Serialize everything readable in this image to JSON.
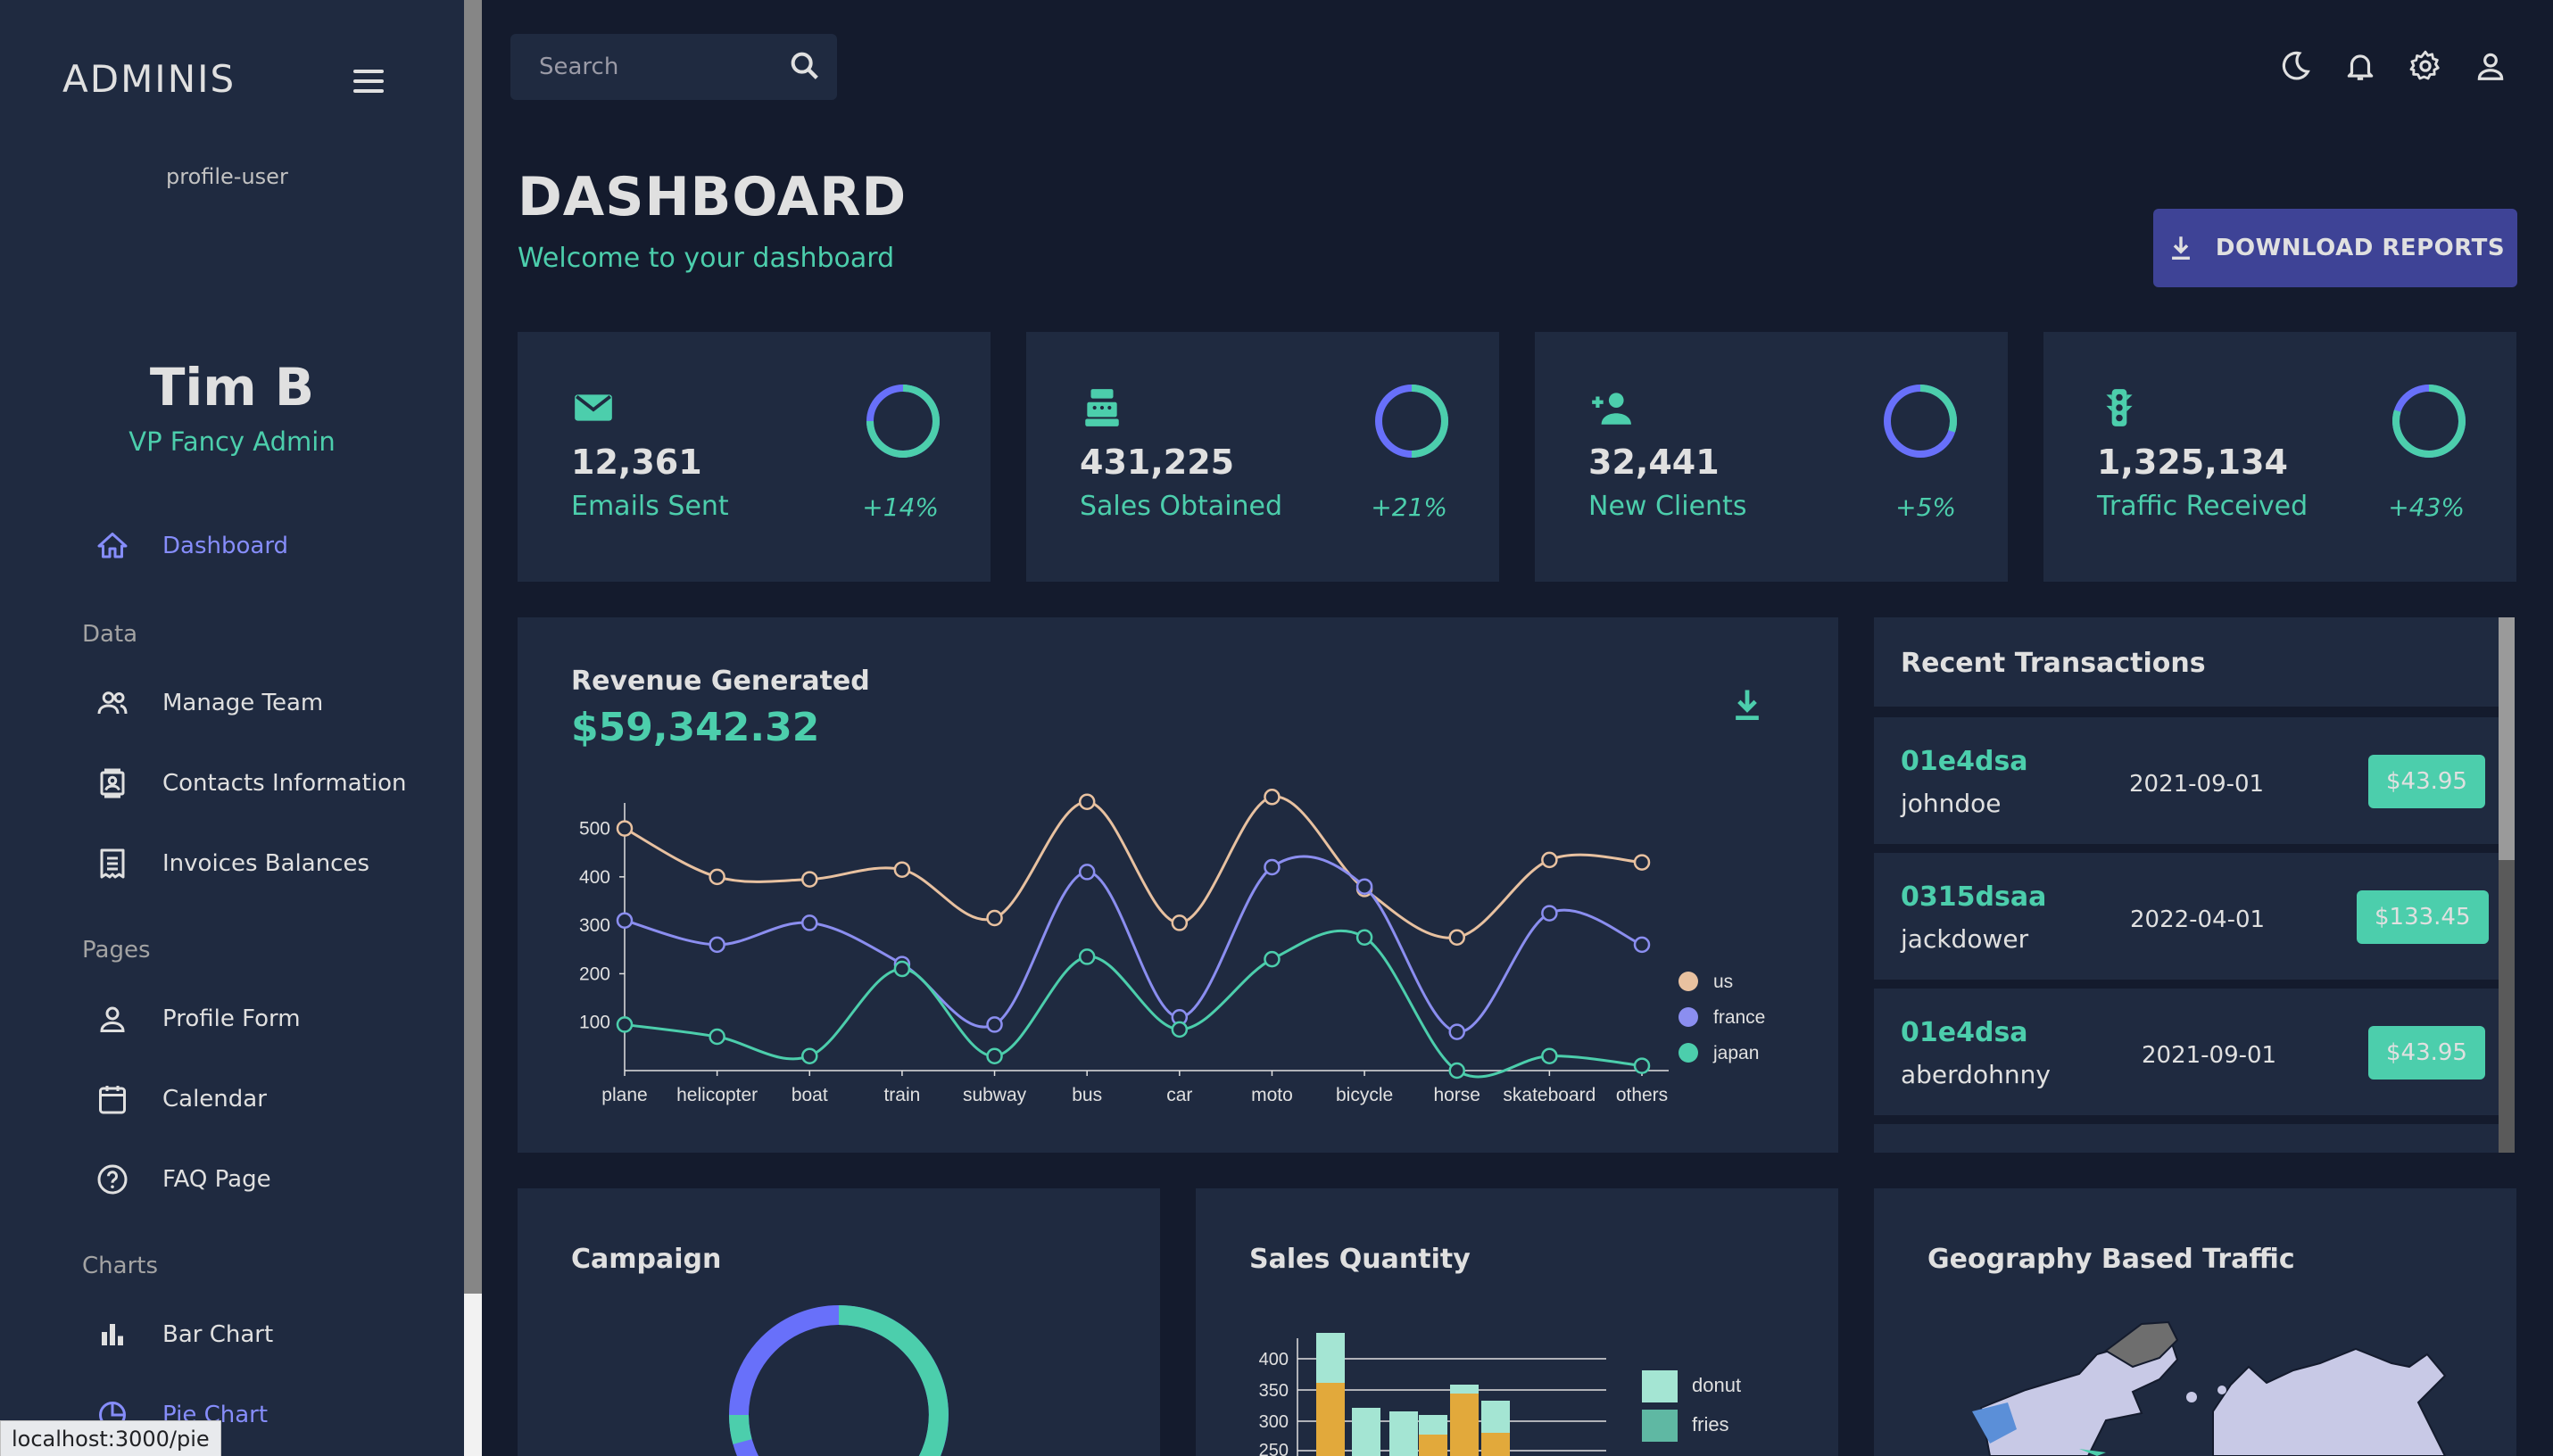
{
  "sidebar": {
    "brand": "ADMINIS",
    "profile_alt": "profile-user",
    "user_name": "Tim B",
    "user_role": "VP Fancy Admin",
    "items": [
      {
        "label": "Dashboard",
        "icon": "home-icon",
        "active": true
      },
      {
        "label": "Manage Team",
        "icon": "people-icon"
      },
      {
        "label": "Contacts Information",
        "icon": "contacts-icon"
      },
      {
        "label": "Invoices Balances",
        "icon": "receipt-icon"
      },
      {
        "label": "Profile Form",
        "icon": "person-icon"
      },
      {
        "label": "Calendar",
        "icon": "calendar-icon"
      },
      {
        "label": "FAQ Page",
        "icon": "help-icon"
      },
      {
        "label": "Bar Chart",
        "icon": "bar-chart-icon"
      },
      {
        "label": "Pie Chart",
        "icon": "pie-chart-icon"
      }
    ],
    "sections": [
      "Data",
      "Pages",
      "Charts"
    ]
  },
  "status_url": "localhost:3000/pie",
  "topbar": {
    "search_placeholder": "Search",
    "icons": [
      "dark-mode-icon",
      "notifications-icon",
      "settings-icon",
      "person-icon"
    ]
  },
  "header": {
    "title": "DASHBOARD",
    "subtitle": "Welcome to your dashboard",
    "download_label": "DOWNLOAD REPORTS"
  },
  "stats": [
    {
      "value": "12,361",
      "label": "Emails Sent",
      "increase": "+14%",
      "progress": 0.75,
      "icon": "email-icon"
    },
    {
      "value": "431,225",
      "label": "Sales Obtained",
      "increase": "+21%",
      "progress": 0.5,
      "icon": "point-of-sale-icon"
    },
    {
      "value": "32,441",
      "label": "New Clients",
      "increase": "+5%",
      "progress": 0.3,
      "icon": "person-add-icon"
    },
    {
      "value": "1,325,134",
      "label": "Traffic Received",
      "increase": "+43%",
      "progress": 0.8,
      "icon": "traffic-icon"
    }
  ],
  "revenue": {
    "title": "Revenue Generated",
    "amount": "$59,342.32"
  },
  "chart_data": {
    "type": "line",
    "categories": [
      "plane",
      "helicopter",
      "boat",
      "train",
      "subway",
      "bus",
      "car",
      "moto",
      "bicycle",
      "horse",
      "skateboard",
      "others"
    ],
    "y_ticks": [
      100,
      200,
      300,
      400,
      500
    ],
    "ylim": [
      0,
      560
    ],
    "legend_position": "right",
    "series": [
      {
        "name": "us",
        "color": "#e8c1a0",
        "values": [
          500,
          400,
          395,
          415,
          315,
          555,
          305,
          565,
          375,
          275,
          435,
          430
        ]
      },
      {
        "name": "france",
        "color": "#8b8ef0",
        "values": [
          310,
          260,
          305,
          220,
          95,
          410,
          110,
          420,
          380,
          80,
          325,
          260
        ]
      },
      {
        "name": "japan",
        "color": "#4cceac",
        "values": [
          95,
          70,
          30,
          210,
          30,
          235,
          85,
          230,
          275,
          0,
          30,
          10
        ]
      }
    ]
  },
  "transactions": {
    "title": "Recent Transactions",
    "rows": [
      {
        "id": "01e4dsa",
        "user": "johndoe",
        "date": "2021-09-01",
        "cost": "$43.95"
      },
      {
        "id": "0315dsaa",
        "user": "jackdower",
        "date": "2022-04-01",
        "cost": "$133.45"
      },
      {
        "id": "01e4dsa",
        "user": "aberdohnny",
        "date": "2021-09-01",
        "cost": "$43.95"
      }
    ]
  },
  "panels": {
    "campaign": "Campaign",
    "sales_quantity": "Sales Quantity",
    "geography": "Geography Based Traffic"
  },
  "sales_chart": {
    "y_ticks": [
      "400",
      "350",
      "300",
      "250"
    ],
    "legend": [
      "donut",
      "fries"
    ]
  }
}
